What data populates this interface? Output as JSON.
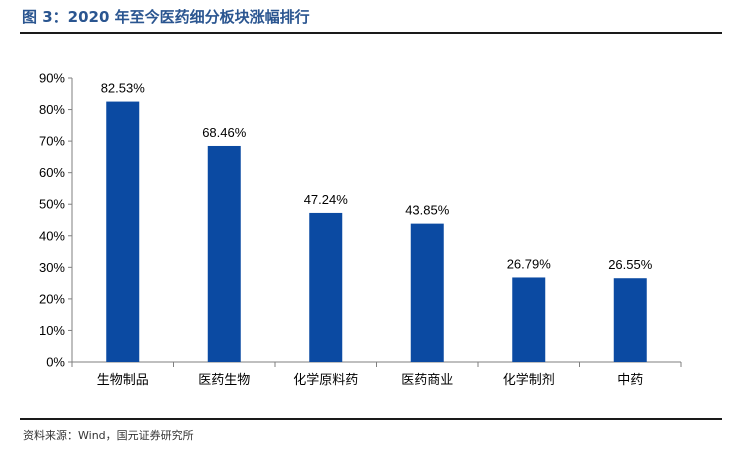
{
  "header": {
    "title": "图 3：2020 年至今医药细分板块涨幅排行"
  },
  "footer": {
    "source": "资料来源：Wind，国元证券研究所"
  },
  "colors": {
    "bar": "#0b4aa2",
    "title": "#2a5590"
  },
  "chart_data": {
    "type": "bar",
    "categories": [
      "生物制品",
      "医药生物",
      "化学原料药",
      "医药商业",
      "化学制剂",
      "中药"
    ],
    "values": [
      82.53,
      68.46,
      47.24,
      43.85,
      26.79,
      26.55
    ],
    "value_labels": [
      "82.53%",
      "68.46%",
      "47.24%",
      "43.85%",
      "26.79%",
      "26.55%"
    ],
    "title": "",
    "xlabel": "",
    "ylabel": "",
    "ylim": [
      0,
      90
    ],
    "yticks": [
      "0%",
      "10%",
      "20%",
      "30%",
      "40%",
      "50%",
      "60%",
      "70%",
      "80%",
      "90%"
    ],
    "grid": false,
    "legend": "none"
  }
}
